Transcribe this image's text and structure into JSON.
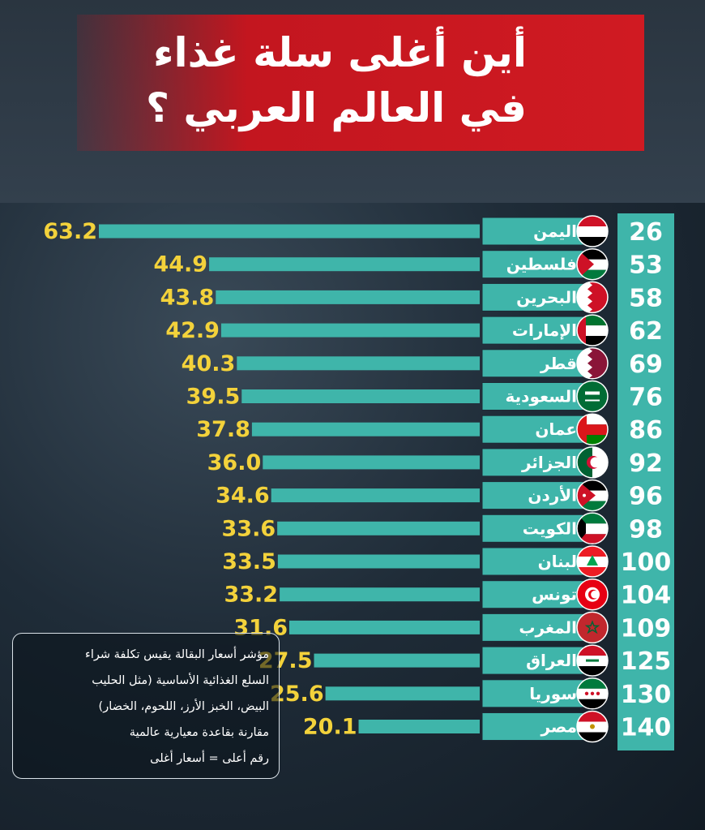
{
  "title": {
    "line1": "أين أغلى سلة غذاء",
    "line2": "في العالم العربي ؟"
  },
  "legend": {
    "lines": [
      "مؤشر أسعار البقالة يقيس تكلفة شراء",
      "السلع الغذائية الأساسية (مثل الحليب",
      "البيض، الخبز الأرز، اللحوم، الخضار)",
      "مقارنة بقاعدة معيارية عالمية",
      "رقم أعلى = أسعار أغلى"
    ]
  },
  "colors": {
    "bar": "#3fb5aa",
    "value_text": "#f3d23b",
    "rank_text": "#ffffff",
    "label_box": "#3fb5aa",
    "title_banner": "#c3161f"
  },
  "chart_data": {
    "type": "bar",
    "orientation": "horizontal",
    "categories": [
      "اليمن",
      "فلسطين",
      "البحرين",
      "الإمارات",
      "قطر",
      "السعودية",
      "عمان",
      "الجزائر",
      "الأردن",
      "الكويت",
      "لبنان",
      "تونس",
      "المغرب",
      "العراق",
      "سوريا",
      "مصر"
    ],
    "ranks": [
      "26",
      "53",
      "58",
      "62",
      "69",
      "76",
      "86",
      "92",
      "96",
      "98",
      "100",
      "104",
      "109",
      "125",
      "130",
      "140"
    ],
    "values": [
      63.2,
      44.9,
      43.8,
      42.9,
      40.3,
      39.5,
      37.8,
      36.0,
      34.6,
      33.6,
      33.5,
      33.2,
      31.6,
      27.5,
      25.6,
      20.1
    ],
    "value_labels": [
      "63.2",
      "44.9",
      "43.8",
      "42.9",
      "40.3",
      "39.5",
      "37.8",
      "36.0",
      "34.6",
      "33.6",
      "33.5",
      "33.2",
      "31.6",
      "27.5",
      "25.6",
      "20.1"
    ],
    "flags": [
      "yemen-flag-icon",
      "palestine-flag-icon",
      "bahrain-flag-icon",
      "uae-flag-icon",
      "qatar-flag-icon",
      "saudi-flag-icon",
      "oman-flag-icon",
      "algeria-flag-icon",
      "jordan-flag-icon",
      "kuwait-flag-icon",
      "lebanon-flag-icon",
      "tunisia-flag-icon",
      "morocco-flag-icon",
      "iraq-flag-icon",
      "syria-flag-icon",
      "egypt-flag-icon"
    ],
    "title": "",
    "xlabel": "",
    "ylabel": "",
    "xlim": [
      0,
      70
    ],
    "grid": false,
    "legend": "bottom-left"
  }
}
